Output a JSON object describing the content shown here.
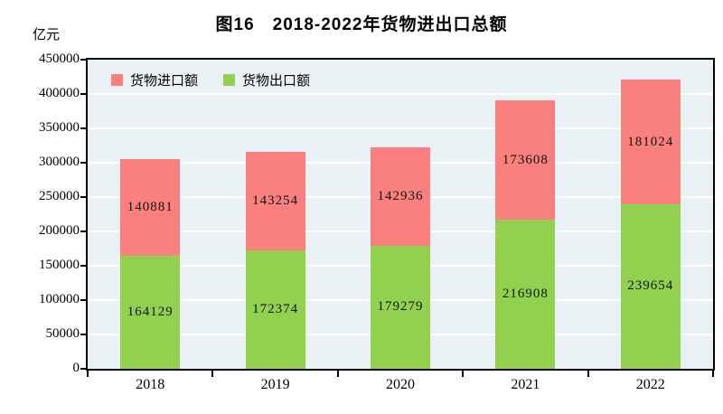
{
  "chart_data": {
    "type": "bar",
    "stacked": true,
    "title": "图16　2018-2022年货物进出口总额",
    "y_unit": "亿元",
    "categories": [
      "2018",
      "2019",
      "2020",
      "2021",
      "2022"
    ],
    "series": [
      {
        "name": "货物出口额",
        "color": "#92d050",
        "values": [
          164129,
          172374,
          179279,
          216908,
          239654
        ]
      },
      {
        "name": "货物进口额",
        "color": "#fa8080",
        "values": [
          140881,
          143254,
          142936,
          173608,
          181024
        ]
      }
    ],
    "legend": [
      {
        "label": "货物进口额",
        "color": "#fa8080"
      },
      {
        "label": "货物出口额",
        "color": "#92d050"
      }
    ],
    "legend_position": "top-left-inside",
    "ylim": [
      0,
      450000
    ],
    "ytick_step": 50000,
    "grid": true,
    "gridline_color": "#ffffff",
    "plot_bg": "#eaf1f5",
    "value_labels": "inside-center"
  }
}
